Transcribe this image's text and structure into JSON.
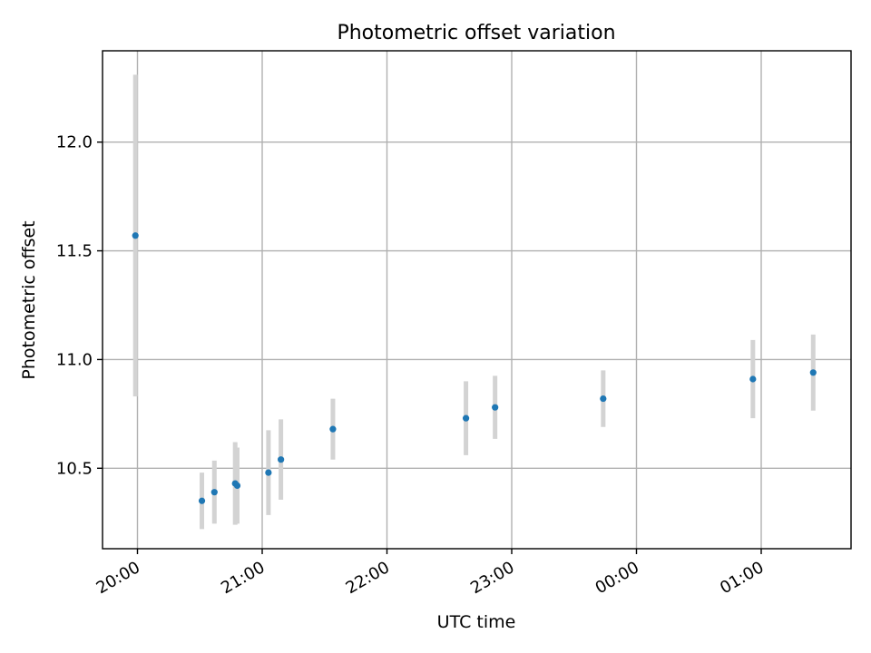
{
  "chart_data": {
    "type": "scatter",
    "title": "Photometric offset variation",
    "xlabel": "UTC time",
    "ylabel": "Photometric offset",
    "grid": true,
    "x_ticks": [
      "20:00",
      "21:00",
      "22:00",
      "23:00",
      "00:00",
      "01:00"
    ],
    "x_tick_hours": [
      0,
      1,
      2,
      3,
      4,
      5
    ],
    "xlim_hours": [
      -0.28,
      5.72
    ],
    "y_ticks": [
      "10.5",
      "11.0",
      "11.5",
      "12.0"
    ],
    "y_tick_values": [
      10.5,
      11.0,
      11.5,
      12.0
    ],
    "ylim": [
      10.13,
      12.42
    ],
    "point_color": "#1f77b4",
    "errorbar_color": "#d3d3d3",
    "points": [
      {
        "t": "19:59",
        "y": 11.57,
        "err": 0.74
      },
      {
        "t": "20:31",
        "y": 10.35,
        "err": 0.13
      },
      {
        "t": "20:37",
        "y": 10.39,
        "err": 0.145
      },
      {
        "t": "20:47",
        "y": 10.43,
        "err": 0.19
      },
      {
        "t": "20:48",
        "y": 10.42,
        "err": 0.175
      },
      {
        "t": "21:03",
        "y": 10.48,
        "err": 0.195
      },
      {
        "t": "21:09",
        "y": 10.54,
        "err": 0.185
      },
      {
        "t": "21:34",
        "y": 10.68,
        "err": 0.14
      },
      {
        "t": "22:38",
        "y": 10.73,
        "err": 0.17
      },
      {
        "t": "22:52",
        "y": 10.78,
        "err": 0.145
      },
      {
        "t": "23:44",
        "y": 10.82,
        "err": 0.13
      },
      {
        "t": "00:56",
        "y": 10.91,
        "err": 0.18
      },
      {
        "t": "01:25",
        "y": 10.94,
        "err": 0.175
      }
    ]
  }
}
